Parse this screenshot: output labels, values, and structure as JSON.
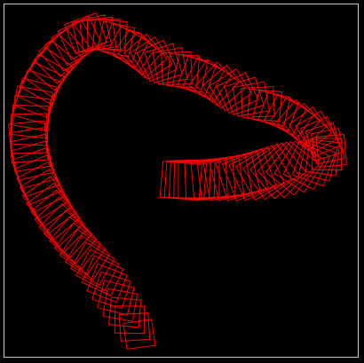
{
  "canvas": {
    "background": "#000000",
    "frame_color": "#c8c8c8",
    "stroke_color": "#ff0000"
  },
  "figure": {
    "description_visible": false,
    "shape_type": "rotated-squares-trail"
  }
}
